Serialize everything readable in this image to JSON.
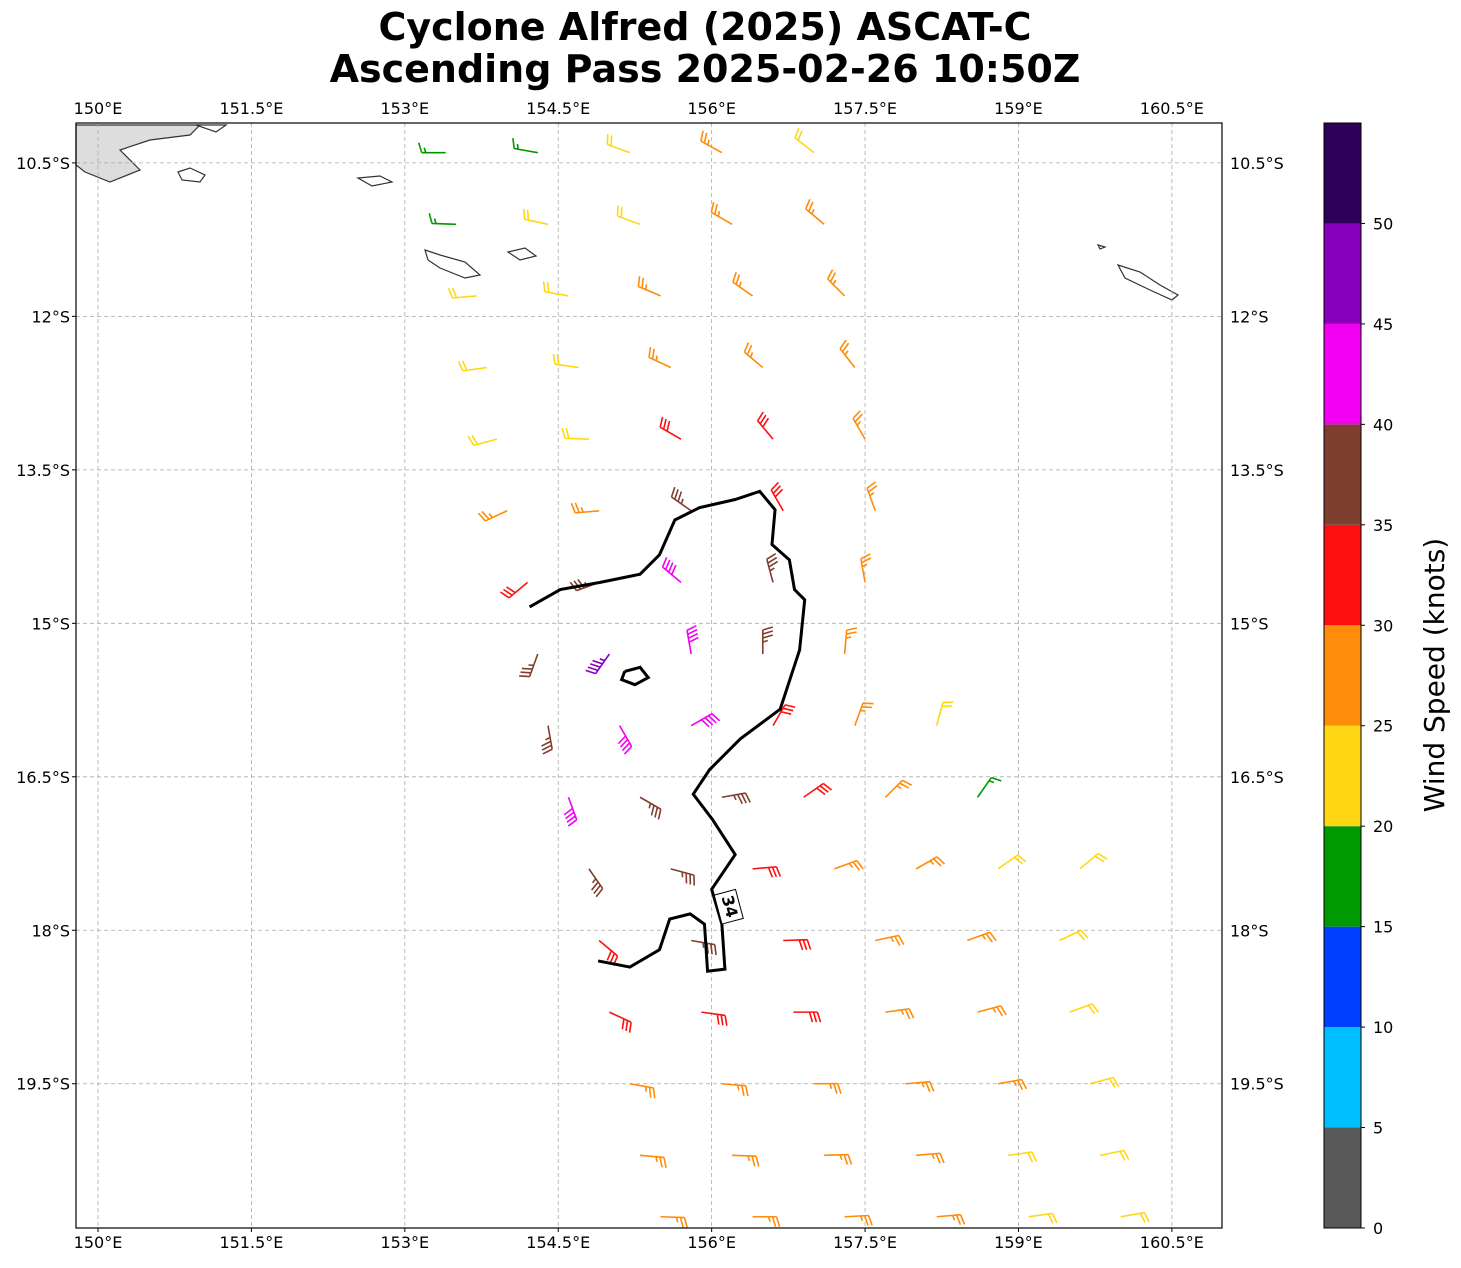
{
  "chart_data": {
    "type": "wind_barbs",
    "title": "Cyclone Alfred (2025) ASCAT-C",
    "subtitle": "Ascending Pass 2025-02-26 10:50Z",
    "xlim": [
      149.785,
      160.99
    ],
    "ylim": [
      -20.91,
      -10.11
    ],
    "xticks": [
      {
        "value": 150,
        "label": "150°E"
      },
      {
        "value": 151.5,
        "label": "151.5°E"
      },
      {
        "value": 153,
        "label": "153°E"
      },
      {
        "value": 154.5,
        "label": "154.5°E"
      },
      {
        "value": 156,
        "label": "156°E"
      },
      {
        "value": 157.5,
        "label": "157.5°E"
      },
      {
        "value": 159,
        "label": "159°E"
      },
      {
        "value": 160.5,
        "label": "160.5°E"
      }
    ],
    "yticks": [
      {
        "value": -10.5,
        "label": "10.5°S"
      },
      {
        "value": -12,
        "label": "12°S"
      },
      {
        "value": -13.5,
        "label": "13.5°S"
      },
      {
        "value": -15,
        "label": "15°S"
      },
      {
        "value": -16.5,
        "label": "16.5°S"
      },
      {
        "value": -18,
        "label": "18°S"
      },
      {
        "value": -19.5,
        "label": "19.5°S"
      }
    ],
    "grid": true,
    "colorbar": {
      "label": "Wind Speed (knots)",
      "clim": [
        0,
        55
      ],
      "ticks": [
        0,
        5,
        10,
        15,
        20,
        25,
        30,
        35,
        40,
        45,
        50
      ],
      "colors": [
        "#595959",
        "#00bfff",
        "#0040ff",
        "#009900",
        "#ffd714",
        "#ff8c0a",
        "#ff1010",
        "#7f3f2f",
        "#f200f2",
        "#8800bb",
        "#2e0059"
      ]
    },
    "barbs": [
      [
        153.4,
        -10.4,
        18,
        270
      ],
      [
        154.3,
        -10.4,
        18,
        280
      ],
      [
        155.2,
        -10.4,
        22,
        290
      ],
      [
        156.1,
        -10.4,
        26,
        299
      ],
      [
        157.0,
        -10.4,
        23,
        308
      ],
      [
        153.5,
        -11.1,
        18,
        272
      ],
      [
        154.4,
        -11.1,
        22,
        282
      ],
      [
        155.3,
        -11.1,
        22,
        290
      ],
      [
        156.2,
        -11.1,
        27,
        300
      ],
      [
        157.1,
        -11.1,
        27,
        310
      ],
      [
        153.7,
        -11.8,
        22,
        265
      ],
      [
        154.6,
        -11.8,
        22,
        280
      ],
      [
        155.5,
        -11.8,
        27,
        293
      ],
      [
        156.4,
        -11.8,
        27,
        305
      ],
      [
        157.3,
        -11.8,
        28,
        315
      ],
      [
        153.8,
        -12.5,
        22,
        262
      ],
      [
        154.7,
        -12.5,
        23,
        278
      ],
      [
        155.6,
        -12.5,
        27,
        295
      ],
      [
        156.5,
        -12.5,
        28,
        310
      ],
      [
        157.4,
        -12.5,
        27,
        322
      ],
      [
        153.9,
        -13.2,
        23,
        255
      ],
      [
        154.8,
        -13.2,
        23,
        272
      ],
      [
        155.7,
        -13.2,
        32,
        300
      ],
      [
        156.6,
        -13.2,
        32,
        320
      ],
      [
        157.5,
        -13.2,
        28,
        330
      ],
      [
        154.0,
        -13.9,
        27,
        245
      ],
      [
        154.9,
        -13.9,
        27,
        265
      ],
      [
        155.8,
        -13.9,
        37,
        305
      ],
      [
        156.7,
        -13.9,
        32,
        330
      ],
      [
        157.6,
        -13.9,
        28,
        340
      ],
      [
        154.2,
        -14.6,
        32,
        230
      ],
      [
        154.9,
        -14.6,
        37,
        250
      ],
      [
        155.7,
        -14.6,
        42,
        310
      ],
      [
        156.6,
        -14.6,
        37,
        345
      ],
      [
        157.5,
        -14.6,
        28,
        350
      ],
      [
        154.3,
        -15.3,
        37,
        200
      ],
      [
        155.0,
        -15.3,
        47,
        215
      ],
      [
        155.8,
        -15.3,
        42,
        350
      ],
      [
        156.5,
        -15.3,
        37,
        0
      ],
      [
        157.3,
        -15.3,
        28,
        5
      ],
      [
        154.4,
        -16.0,
        37,
        170
      ],
      [
        155.1,
        -16.0,
        42,
        150
      ],
      [
        155.8,
        -16.0,
        42,
        60
      ],
      [
        156.6,
        -16.0,
        32,
        30
      ],
      [
        157.4,
        -16.0,
        28,
        20
      ],
      [
        158.2,
        -16.0,
        23,
        15
      ],
      [
        154.6,
        -16.7,
        42,
        160
      ],
      [
        155.3,
        -16.7,
        37,
        120
      ],
      [
        156.1,
        -16.7,
        37,
        80
      ],
      [
        156.9,
        -16.7,
        32,
        55
      ],
      [
        157.7,
        -16.7,
        28,
        45
      ],
      [
        158.6,
        -16.7,
        18,
        35
      ],
      [
        154.8,
        -17.4,
        37,
        145
      ],
      [
        155.6,
        -17.4,
        37,
        105
      ],
      [
        156.4,
        -17.4,
        32,
        85
      ],
      [
        157.2,
        -17.4,
        28,
        70
      ],
      [
        158.0,
        -17.4,
        28,
        60
      ],
      [
        158.8,
        -17.4,
        23,
        55
      ],
      [
        159.6,
        -17.4,
        23,
        50
      ],
      [
        154.9,
        -18.1,
        32,
        130
      ],
      [
        155.8,
        -18.1,
        37,
        100
      ],
      [
        156.7,
        -18.1,
        32,
        88
      ],
      [
        157.6,
        -18.1,
        28,
        78
      ],
      [
        158.5,
        -18.1,
        28,
        70
      ],
      [
        159.4,
        -18.1,
        23,
        65
      ],
      [
        155.0,
        -18.8,
        32,
        115
      ],
      [
        155.9,
        -18.8,
        32,
        98
      ],
      [
        156.8,
        -18.8,
        32,
        90
      ],
      [
        157.7,
        -18.8,
        28,
        82
      ],
      [
        158.6,
        -18.8,
        28,
        75
      ],
      [
        159.5,
        -18.8,
        23,
        70
      ],
      [
        155.2,
        -19.5,
        28,
        100
      ],
      [
        156.1,
        -19.5,
        28,
        95
      ],
      [
        157.0,
        -19.5,
        28,
        90
      ],
      [
        157.9,
        -19.5,
        28,
        85
      ],
      [
        158.8,
        -19.5,
        28,
        80
      ],
      [
        159.7,
        -19.5,
        23,
        75
      ],
      [
        155.3,
        -20.2,
        28,
        95
      ],
      [
        156.2,
        -20.2,
        28,
        92
      ],
      [
        157.1,
        -20.2,
        28,
        88
      ],
      [
        158.0,
        -20.2,
        28,
        85
      ],
      [
        158.9,
        -20.2,
        23,
        82
      ],
      [
        159.8,
        -20.2,
        23,
        78
      ],
      [
        155.5,
        -20.8,
        28,
        92
      ],
      [
        156.4,
        -20.8,
        28,
        90
      ],
      [
        157.3,
        -20.8,
        28,
        87
      ],
      [
        158.2,
        -20.8,
        28,
        85
      ],
      [
        159.1,
        -20.8,
        23,
        82
      ],
      [
        160.0,
        -20.8,
        23,
        80
      ]
    ],
    "contour": {
      "level": 34,
      "lon": [
        154.22,
        154.52,
        154.91,
        155.3,
        155.49,
        155.64,
        155.88,
        156.23,
        156.47,
        156.62,
        156.59,
        156.76,
        156.81,
        156.91,
        156.86,
        156.67,
        156.28,
        155.98,
        155.82,
        156.01,
        156.23,
        156.0,
        156.1,
        156.13,
        155.96,
        155.93,
        155.79,
        155.59,
        155.49,
        155.2,
        154.89,
        null,
        155.15,
        155.3,
        155.38,
        155.25,
        155.12,
        155.15
      ],
      "lat": [
        -14.84,
        -14.67,
        -14.6,
        -14.52,
        -14.33,
        -13.99,
        -13.87,
        -13.79,
        -13.71,
        -13.89,
        -14.23,
        -14.38,
        -14.67,
        -14.77,
        -15.26,
        -15.84,
        -16.13,
        -16.43,
        -16.67,
        -16.92,
        -17.26,
        -17.6,
        -17.94,
        -18.38,
        -18.4,
        -17.94,
        -17.84,
        -17.89,
        -18.19,
        -18.36,
        -18.3,
        null,
        -15.47,
        -15.43,
        -15.53,
        -15.6,
        -15.55,
        -15.47
      ]
    }
  }
}
